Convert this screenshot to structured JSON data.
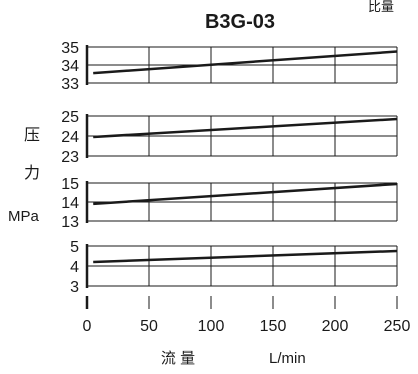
{
  "header": {
    "corner_text": "比量",
    "title": "B3G-03"
  },
  "ylabel": {
    "char1": "压",
    "char2": "力",
    "unit": "MPa"
  },
  "xlabel": {
    "chars": "流 量",
    "unit": "L/min"
  },
  "colors": {
    "line": "#1a1a1a",
    "grid": "#1a1a1a"
  },
  "chart_data": [
    {
      "type": "line",
      "title": "B3G-03",
      "xlim": [
        0,
        250
      ],
      "ylim": [
        33,
        35
      ],
      "yticks": [
        33,
        34,
        35
      ],
      "x": [
        5,
        250
      ],
      "y": [
        33.55,
        34.75
      ],
      "grid": true
    },
    {
      "type": "line",
      "xlim": [
        0,
        250
      ],
      "ylim": [
        23,
        25
      ],
      "yticks": [
        23,
        24,
        25
      ],
      "x": [
        5,
        250
      ],
      "y": [
        23.95,
        24.85
      ],
      "grid": true
    },
    {
      "type": "line",
      "xlim": [
        0,
        250
      ],
      "ylim": [
        13,
        15
      ],
      "yticks": [
        13,
        14,
        15
      ],
      "x": [
        5,
        250
      ],
      "y": [
        13.9,
        14.95
      ],
      "grid": true
    },
    {
      "type": "line",
      "xlim": [
        0,
        250
      ],
      "ylim": [
        3,
        5
      ],
      "yticks": [
        3,
        4,
        5
      ],
      "x": [
        5,
        250
      ],
      "y": [
        4.2,
        4.75
      ],
      "grid": true,
      "xticks": [
        0,
        50,
        100,
        150,
        200,
        250
      ],
      "xlabel": "L/min"
    }
  ]
}
